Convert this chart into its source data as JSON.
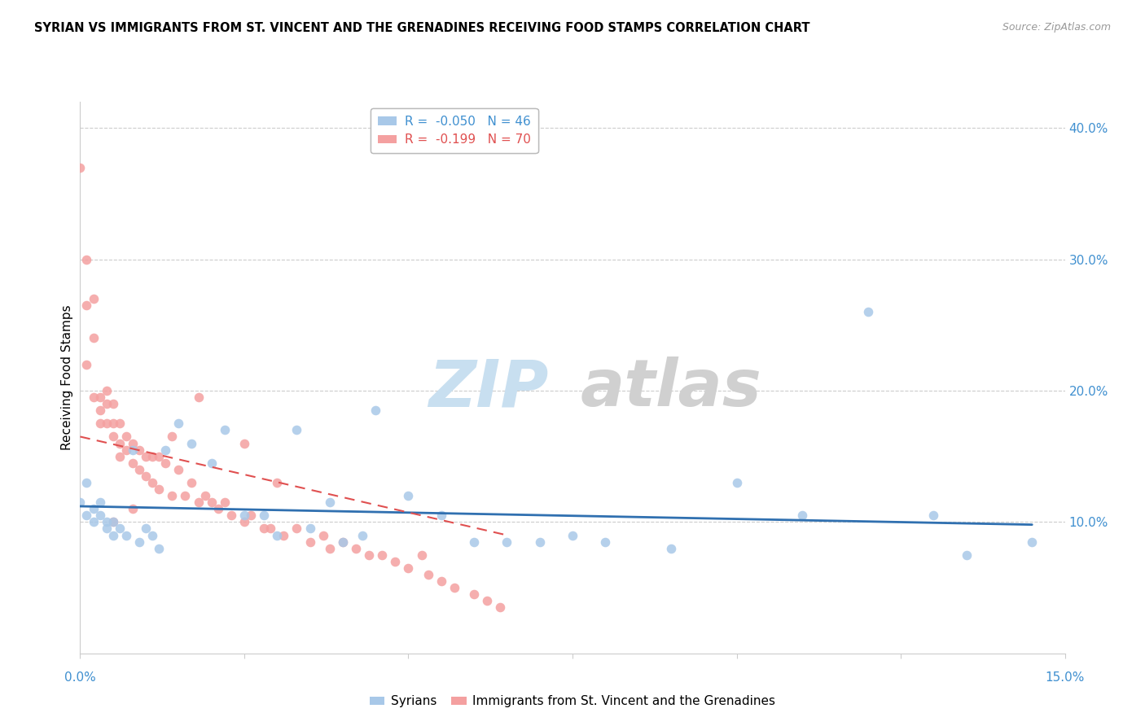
{
  "title": "SYRIAN VS IMMIGRANTS FROM ST. VINCENT AND THE GRENADINES RECEIVING FOOD STAMPS CORRELATION CHART",
  "source": "Source: ZipAtlas.com",
  "ylabel": "Receiving Food Stamps",
  "ytick_labels": [
    "10.0%",
    "20.0%",
    "30.0%",
    "40.0%"
  ],
  "ytick_values": [
    0.1,
    0.2,
    0.3,
    0.4
  ],
  "xlim": [
    0.0,
    0.15
  ],
  "ylim": [
    0.0,
    0.42
  ],
  "color_blue": "#a8c8e8",
  "color_pink": "#f4a0a0",
  "color_blue_line": "#3070b0",
  "color_pink_line": "#e05050",
  "color_text_blue": "#4090d0",
  "color_axis_blue": "#4090d0",
  "syrians_x": [
    0.0,
    0.001,
    0.001,
    0.002,
    0.002,
    0.003,
    0.003,
    0.004,
    0.004,
    0.005,
    0.005,
    0.006,
    0.007,
    0.008,
    0.009,
    0.01,
    0.011,
    0.012,
    0.013,
    0.015,
    0.017,
    0.02,
    0.022,
    0.025,
    0.028,
    0.03,
    0.033,
    0.035,
    0.038,
    0.04,
    0.043,
    0.045,
    0.05,
    0.055,
    0.06,
    0.065,
    0.07,
    0.075,
    0.08,
    0.09,
    0.1,
    0.11,
    0.12,
    0.13,
    0.135,
    0.145
  ],
  "syrians_y": [
    0.115,
    0.13,
    0.105,
    0.11,
    0.1,
    0.105,
    0.115,
    0.1,
    0.095,
    0.1,
    0.09,
    0.095,
    0.09,
    0.155,
    0.085,
    0.095,
    0.09,
    0.08,
    0.155,
    0.175,
    0.16,
    0.145,
    0.17,
    0.105,
    0.105,
    0.09,
    0.17,
    0.095,
    0.115,
    0.085,
    0.09,
    0.185,
    0.12,
    0.105,
    0.085,
    0.085,
    0.085,
    0.09,
    0.085,
    0.08,
    0.13,
    0.105,
    0.26,
    0.105,
    0.075,
    0.085
  ],
  "svg_x": [
    0.0,
    0.001,
    0.001,
    0.001,
    0.002,
    0.002,
    0.002,
    0.003,
    0.003,
    0.003,
    0.004,
    0.004,
    0.004,
    0.005,
    0.005,
    0.005,
    0.006,
    0.006,
    0.006,
    0.007,
    0.007,
    0.008,
    0.008,
    0.009,
    0.009,
    0.01,
    0.01,
    0.011,
    0.011,
    0.012,
    0.012,
    0.013,
    0.014,
    0.015,
    0.016,
    0.017,
    0.018,
    0.019,
    0.02,
    0.021,
    0.022,
    0.023,
    0.025,
    0.026,
    0.028,
    0.029,
    0.031,
    0.033,
    0.035,
    0.037,
    0.038,
    0.04,
    0.042,
    0.044,
    0.046,
    0.048,
    0.05,
    0.053,
    0.055,
    0.057,
    0.06,
    0.062,
    0.064,
    0.052,
    0.03,
    0.025,
    0.018,
    0.014,
    0.008,
    0.005
  ],
  "svg_y": [
    0.37,
    0.3,
    0.265,
    0.22,
    0.27,
    0.24,
    0.195,
    0.195,
    0.185,
    0.175,
    0.2,
    0.19,
    0.175,
    0.19,
    0.175,
    0.165,
    0.175,
    0.16,
    0.15,
    0.165,
    0.155,
    0.16,
    0.145,
    0.155,
    0.14,
    0.15,
    0.135,
    0.15,
    0.13,
    0.15,
    0.125,
    0.145,
    0.12,
    0.14,
    0.12,
    0.13,
    0.115,
    0.12,
    0.115,
    0.11,
    0.115,
    0.105,
    0.1,
    0.105,
    0.095,
    0.095,
    0.09,
    0.095,
    0.085,
    0.09,
    0.08,
    0.085,
    0.08,
    0.075,
    0.075,
    0.07,
    0.065,
    0.06,
    0.055,
    0.05,
    0.045,
    0.04,
    0.035,
    0.075,
    0.13,
    0.16,
    0.195,
    0.165,
    0.11,
    0.1
  ],
  "blue_line_x": [
    0.0,
    0.145
  ],
  "blue_line_y": [
    0.112,
    0.098
  ],
  "pink_line_x": [
    0.0,
    0.065
  ],
  "pink_line_y": [
    0.165,
    0.09
  ],
  "watermark_zip_color": "#c8dff0",
  "watermark_atlas_color": "#d0d0d0",
  "grid_color": "#cccccc",
  "border_color": "#cccccc"
}
